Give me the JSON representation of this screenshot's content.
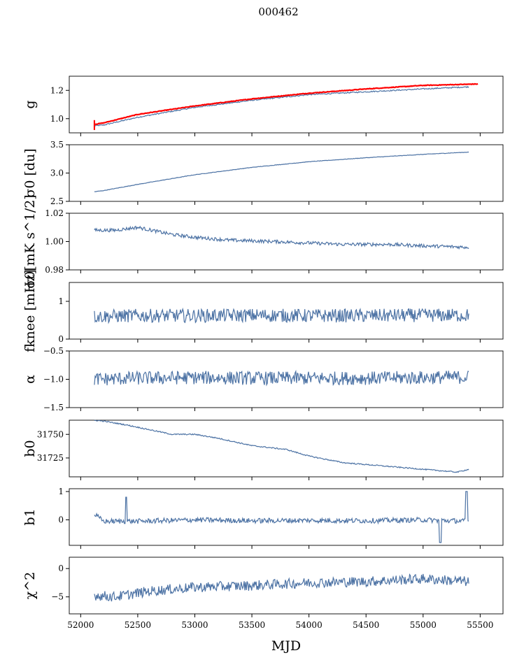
{
  "figure": {
    "title": "000462",
    "xlabel": "MJD",
    "x_ticks": [
      "52000",
      "52500",
      "53000",
      "53500",
      "54000",
      "54500",
      "55000",
      "55500"
    ]
  },
  "colors": {
    "series": "#4c72a4",
    "highlight": "#ff0000",
    "axis": "#000000"
  },
  "chart_data": [
    {
      "type": "line",
      "ylabel": "g",
      "xlim": [
        51900,
        55700
      ],
      "ylim": [
        0.9,
        1.3
      ],
      "yticks": [
        1.0,
        1.2
      ],
      "ytick_labels": [
        "1.0",
        "1.2"
      ],
      "series": [
        {
          "color": "#4c72a4",
          "points": [
            [
              52120,
              0.95
            ],
            [
              52200,
              0.955
            ],
            [
              52500,
              1.01
            ],
            [
              53000,
              1.08
            ],
            [
              53500,
              1.13
            ],
            [
              54000,
              1.17
            ],
            [
              54500,
              1.19
            ],
            [
              55000,
              1.21
            ],
            [
              55400,
              1.225
            ]
          ]
        },
        {
          "color": "#ff0000",
          "points": [
            [
              52120,
              0.96
            ],
            [
              52200,
              0.97
            ],
            [
              52500,
              1.03
            ],
            [
              53000,
              1.09
            ],
            [
              53500,
              1.14
            ],
            [
              54000,
              1.18
            ],
            [
              54500,
              1.21
            ],
            [
              55000,
              1.235
            ],
            [
              55480,
              1.245
            ]
          ]
        }
      ]
    },
    {
      "type": "line",
      "ylabel": "σ0 [du]",
      "xlim": [
        51900,
        55700
      ],
      "ylim": [
        2.5,
        3.5
      ],
      "yticks": [
        2.5,
        3.0,
        3.5
      ],
      "ytick_labels": [
        "2.5",
        "3.0",
        "3.5"
      ],
      "series": [
        {
          "color": "#4c72a4",
          "points": [
            [
              52120,
              2.67
            ],
            [
              52200,
              2.69
            ],
            [
              52500,
              2.8
            ],
            [
              53000,
              2.97
            ],
            [
              53500,
              3.1
            ],
            [
              54000,
              3.2
            ],
            [
              54500,
              3.27
            ],
            [
              55000,
              3.33
            ],
            [
              55400,
              3.37
            ]
          ]
        }
      ]
    },
    {
      "type": "line",
      "ylabel": "σ0[mK s^1/2]",
      "xlim": [
        51900,
        55700
      ],
      "ylim": [
        0.98,
        1.02
      ],
      "yticks": [
        0.98,
        1.0,
        1.02
      ],
      "ytick_labels": [
        "0.98",
        "1.00",
        "1.02"
      ],
      "series": [
        {
          "color": "#4c72a4",
          "points": [
            [
              52120,
              1.008
            ],
            [
              52300,
              1.008
            ],
            [
              52500,
              1.01
            ],
            [
              52800,
              1.005
            ],
            [
              53000,
              1.003
            ],
            [
              53300,
              1.001
            ],
            [
              53700,
              1.0
            ],
            [
              54000,
              0.999
            ],
            [
              54300,
              0.998
            ],
            [
              54700,
              0.998
            ],
            [
              55000,
              0.997
            ],
            [
              55400,
              0.996
            ]
          ]
        }
      ]
    },
    {
      "type": "line",
      "ylabel": "fknee [mHz]",
      "xlim": [
        51900,
        55700
      ],
      "ylim": [
        0,
        1.5
      ],
      "yticks": [
        0,
        1
      ],
      "ytick_labels": [
        "0",
        "1"
      ],
      "series": [
        {
          "color": "#4c72a4",
          "points": [
            [
              52120,
              0.6
            ],
            [
              52500,
              0.62
            ],
            [
              53000,
              0.62
            ],
            [
              53500,
              0.63
            ],
            [
              54000,
              0.62
            ],
            [
              54500,
              0.62
            ],
            [
              55000,
              0.63
            ],
            [
              55400,
              0.63
            ]
          ]
        }
      ]
    },
    {
      "type": "line",
      "ylabel": "α",
      "xlim": [
        51900,
        55700
      ],
      "ylim": [
        -1.5,
        -0.5
      ],
      "yticks": [
        -1.5,
        -1.0,
        -0.5
      ],
      "ytick_labels": [
        "−1.5",
        "−1.0",
        "−0.5"
      ],
      "series": [
        {
          "color": "#4c72a4",
          "points": [
            [
              52120,
              -1.0
            ],
            [
              52500,
              -0.98
            ],
            [
              53000,
              -0.97
            ],
            [
              53500,
              -0.98
            ],
            [
              54000,
              -0.98
            ],
            [
              54500,
              -0.98
            ],
            [
              55000,
              -0.97
            ],
            [
              55400,
              -0.96
            ]
          ]
        }
      ]
    },
    {
      "type": "line",
      "ylabel": "b0",
      "xlim": [
        51900,
        55700
      ],
      "ylim": [
        31705,
        31765
      ],
      "yticks": [
        31725,
        31750
      ],
      "ytick_labels": [
        "31725",
        "31750"
      ],
      "series": [
        {
          "color": "#4c72a4",
          "points": [
            [
              52120,
              31765
            ],
            [
              52200,
              31764
            ],
            [
              52400,
              31760
            ],
            [
              52600,
              31755
            ],
            [
              52800,
              31750
            ],
            [
              53000,
              31750
            ],
            [
              53200,
              31746
            ],
            [
              53500,
              31738
            ],
            [
              53800,
              31734
            ],
            [
              54000,
              31727
            ],
            [
              54300,
              31720
            ],
            [
              54600,
              31717
            ],
            [
              55000,
              31713
            ],
            [
              55300,
              31710
            ],
            [
              55400,
              31713
            ]
          ]
        }
      ]
    },
    {
      "type": "line",
      "ylabel": "b1",
      "xlim": [
        51900,
        55700
      ],
      "ylim": [
        -0.9,
        1.1
      ],
      "yticks": [
        0,
        1
      ],
      "ytick_labels": [
        "0",
        "1"
      ],
      "series": [
        {
          "color": "#4c72a4",
          "points": [
            [
              52120,
              0.2
            ],
            [
              52200,
              -0.05
            ],
            [
              52500,
              -0.05
            ],
            [
              53000,
              0.0
            ],
            [
              53500,
              -0.03
            ],
            [
              54000,
              -0.02
            ],
            [
              54500,
              -0.03
            ],
            [
              55000,
              0.0
            ],
            [
              55400,
              -0.05
            ]
          ]
        }
      ]
    },
    {
      "type": "line",
      "ylabel": "χ^2",
      "xlim": [
        51900,
        55700
      ],
      "ylim": [
        -8,
        2
      ],
      "yticks": [
        -5,
        0
      ],
      "ytick_labels": [
        "−5",
        "0"
      ],
      "series": [
        {
          "color": "#4c72a4",
          "points": [
            [
              52120,
              -4.7
            ],
            [
              52300,
              -5.0
            ],
            [
              52600,
              -4.0
            ],
            [
              53000,
              -3.3
            ],
            [
              53500,
              -3.0
            ],
            [
              54000,
              -2.5
            ],
            [
              54500,
              -2.3
            ],
            [
              55000,
              -1.8
            ],
            [
              55400,
              -2.3
            ]
          ]
        }
      ]
    }
  ]
}
